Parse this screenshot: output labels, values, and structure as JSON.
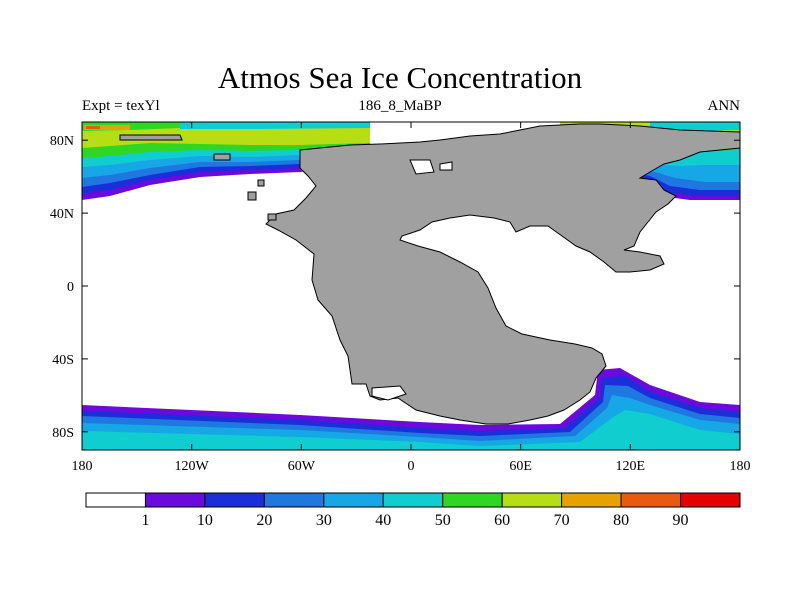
{
  "title": "Atmos Sea Ice Concentration",
  "subtitle_left": "Expt = texYl",
  "subtitle_center": "186_8_MaBP",
  "subtitle_right": "ANN",
  "map": {
    "x_ticks": [
      {
        "lon": -180,
        "label": "180"
      },
      {
        "lon": -120,
        "label": "120W"
      },
      {
        "lon": -60,
        "label": "60W"
      },
      {
        "lon": 0,
        "label": "0"
      },
      {
        "lon": 60,
        "label": "60E"
      },
      {
        "lon": 120,
        "label": "120E"
      },
      {
        "lon": 180,
        "label": "180"
      }
    ],
    "y_ticks": [
      {
        "lat": 80,
        "label": "80N"
      },
      {
        "lat": 40,
        "label": "40N"
      },
      {
        "lat": 0,
        "label": "0"
      },
      {
        "lat": -40,
        "label": "40S"
      },
      {
        "lat": -80,
        "label": "80S"
      }
    ],
    "land_color": "#a0a0a0",
    "ocean_color": "#ffffff"
  },
  "colorbar": {
    "colors": [
      "#ffffff",
      "#6a0adc",
      "#1a2fd9",
      "#1e78e0",
      "#15a7e6",
      "#10cdd0",
      "#2fd624",
      "#b7dd15",
      "#e6a300",
      "#e85a10",
      "#e50000"
    ],
    "labels": [
      "1",
      "10",
      "20",
      "30",
      "40",
      "50",
      "60",
      "70",
      "80",
      "90"
    ]
  }
}
